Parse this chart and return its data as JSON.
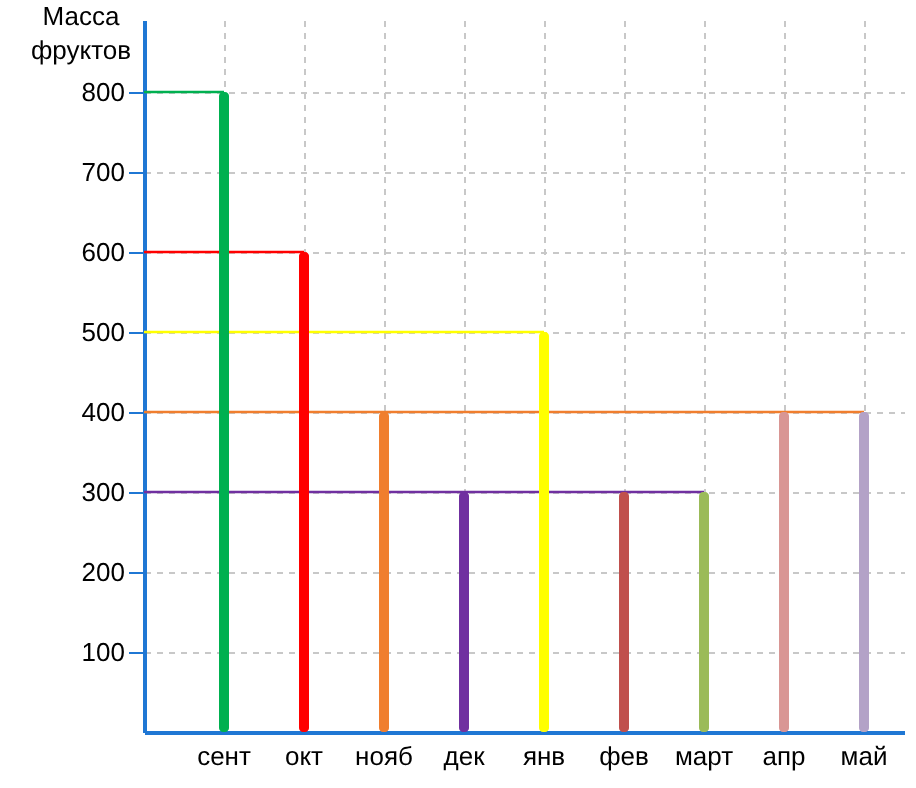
{
  "chart_data": {
    "type": "bar",
    "ylabel": "Масса фруктов",
    "categories": [
      "сент",
      "окт",
      "нояб",
      "дек",
      "янв",
      "фев",
      "март",
      "апр",
      "май"
    ],
    "values": [
      800,
      600,
      400,
      300,
      500,
      300,
      300,
      400,
      400
    ],
    "colors": [
      "#00b050",
      "#ff0000",
      "#f07e2e",
      "#7030a0",
      "#ffff00",
      "#c0504d",
      "#9bbb59",
      "#d99694",
      "#b3a2c7"
    ],
    "ref_lines": [
      {
        "axis": "y",
        "value": 800,
        "color": "#00b050"
      },
      {
        "axis": "y",
        "value": 600,
        "color": "#ff0000"
      },
      {
        "axis": "y",
        "value": 500,
        "color": "#ffff00"
      },
      {
        "axis": "y",
        "value": 400,
        "color": "#f07e2e"
      },
      {
        "axis": "y",
        "value": 300,
        "color": "#7030a0"
      }
    ],
    "ylim": [
      0,
      890
    ],
    "yticks": [
      100,
      200,
      300,
      400,
      500,
      600,
      700,
      800
    ],
    "grid": true
  }
}
